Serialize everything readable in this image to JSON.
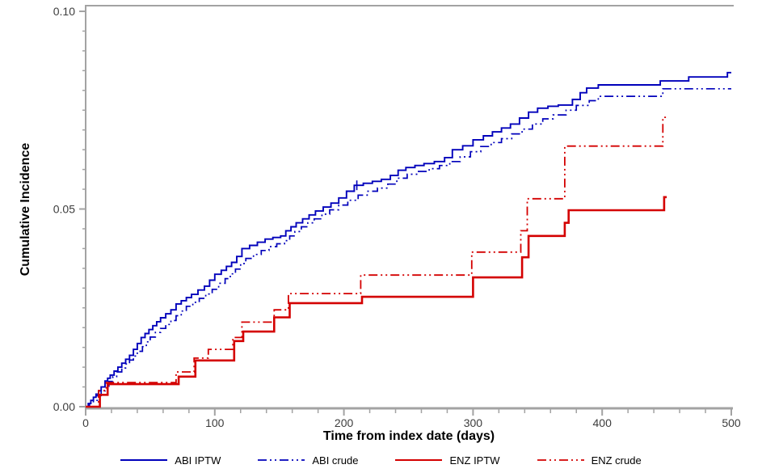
{
  "chart_data": {
    "type": "line",
    "subtype": "step-cumulative-incidence",
    "title": "",
    "xlabel": "Time from index date (days)",
    "ylabel": "Cumulative Incidence",
    "xlim": [
      0,
      500
    ],
    "ylim": [
      0,
      0.1
    ],
    "x_major_ticks": [
      0,
      100,
      200,
      300,
      400,
      500
    ],
    "x_minor_tick_interval": 20,
    "y_major_ticks": [
      0,
      0.05,
      0.1
    ],
    "y_tick_labels": [
      "0.00",
      "0.05",
      "0.10"
    ],
    "y_minor_tick_interval": 0.005,
    "grid": false,
    "legend_position": "bottom",
    "axis_color": "#a3a3a3",
    "tick_label_color": "#3d3d3d",
    "series": [
      {
        "name": "ABI IPTW",
        "color": "#0000bb",
        "style": "solid",
        "width": 1.9,
        "points": [
          [
            0,
            0
          ],
          [
            2,
            0.0008
          ],
          [
            4,
            0.0016
          ],
          [
            6,
            0.0024
          ],
          [
            8,
            0.0032
          ],
          [
            10,
            0.004
          ],
          [
            12,
            0.005
          ],
          [
            15,
            0.0065
          ],
          [
            17,
            0.0072
          ],
          [
            19,
            0.008
          ],
          [
            22,
            0.009
          ],
          [
            25,
            0.01
          ],
          [
            28,
            0.011
          ],
          [
            31,
            0.012
          ],
          [
            34,
            0.013
          ],
          [
            37,
            0.0145
          ],
          [
            40,
            0.016
          ],
          [
            43,
            0.0175
          ],
          [
            46,
            0.0185
          ],
          [
            49,
            0.0195
          ],
          [
            52,
            0.0205
          ],
          [
            55,
            0.0215
          ],
          [
            58,
            0.0225
          ],
          [
            62,
            0.0235
          ],
          [
            66,
            0.0245
          ],
          [
            70,
            0.026
          ],
          [
            74,
            0.0268
          ],
          [
            78,
            0.0276
          ],
          [
            82,
            0.0284
          ],
          [
            87,
            0.0295
          ],
          [
            92,
            0.0305
          ],
          [
            96,
            0.032
          ],
          [
            100,
            0.0335
          ],
          [
            105,
            0.0345
          ],
          [
            109,
            0.0355
          ],
          [
            113,
            0.0365
          ],
          [
            117,
            0.038
          ],
          [
            121,
            0.04
          ],
          [
            127,
            0.0408
          ],
          [
            133,
            0.0416
          ],
          [
            139,
            0.0424
          ],
          [
            145,
            0.0428
          ],
          [
            151,
            0.0432
          ],
          [
            155,
            0.0445
          ],
          [
            159,
            0.0455
          ],
          [
            163,
            0.0465
          ],
          [
            168,
            0.0475
          ],
          [
            173,
            0.0485
          ],
          [
            178,
            0.0495
          ],
          [
            184,
            0.0505
          ],
          [
            190,
            0.0515
          ],
          [
            196,
            0.0528
          ],
          [
            202,
            0.0545
          ],
          [
            208,
            0.056
          ],
          [
            215,
            0.0565
          ],
          [
            222,
            0.057
          ],
          [
            229,
            0.0575
          ],
          [
            236,
            0.0585
          ],
          [
            242,
            0.0598
          ],
          [
            248,
            0.0605
          ],
          [
            255,
            0.061
          ],
          [
            262,
            0.0615
          ],
          [
            270,
            0.062
          ],
          [
            278,
            0.063
          ],
          [
            284,
            0.065
          ],
          [
            292,
            0.066
          ],
          [
            300,
            0.0675
          ],
          [
            308,
            0.0685
          ],
          [
            315,
            0.0695
          ],
          [
            322,
            0.0705
          ],
          [
            329,
            0.0715
          ],
          [
            336,
            0.073
          ],
          [
            343,
            0.0745
          ],
          [
            350,
            0.0755
          ],
          [
            358,
            0.076
          ],
          [
            366,
            0.0763
          ],
          [
            377,
            0.0777
          ],
          [
            383,
            0.0794
          ],
          [
            388,
            0.0806
          ],
          [
            397,
            0.0814
          ],
          [
            445,
            0.0824
          ],
          [
            467,
            0.0834
          ],
          [
            497,
            0.0845
          ],
          [
            500,
            0.0845
          ]
        ]
      },
      {
        "name": "ABI crude",
        "color": "#0000bb",
        "style": "dash-dot-dot",
        "width": 1.7,
        "points": [
          [
            0,
            0
          ],
          [
            3,
            0.0008
          ],
          [
            6,
            0.0016
          ],
          [
            9,
            0.0028
          ],
          [
            12,
            0.004
          ],
          [
            15,
            0.0052
          ],
          [
            18,
            0.0064
          ],
          [
            21,
            0.0076
          ],
          [
            24,
            0.0088
          ],
          [
            28,
            0.0098
          ],
          [
            31,
            0.0108
          ],
          [
            34,
            0.0118
          ],
          [
            37,
            0.0128
          ],
          [
            40,
            0.014
          ],
          [
            44,
            0.0152
          ],
          [
            47,
            0.0164
          ],
          [
            50,
            0.0176
          ],
          [
            54,
            0.0188
          ],
          [
            58,
            0.0198
          ],
          [
            62,
            0.0208
          ],
          [
            66,
            0.0218
          ],
          [
            70,
            0.023
          ],
          [
            74,
            0.0242
          ],
          [
            78,
            0.0254
          ],
          [
            83,
            0.0264
          ],
          [
            88,
            0.0274
          ],
          [
            93,
            0.0285
          ],
          [
            98,
            0.0297
          ],
          [
            103,
            0.0312
          ],
          [
            108,
            0.0324
          ],
          [
            112,
            0.0336
          ],
          [
            116,
            0.0348
          ],
          [
            120,
            0.0362
          ],
          [
            124,
            0.0375
          ],
          [
            130,
            0.0385
          ],
          [
            136,
            0.0395
          ],
          [
            142,
            0.0405
          ],
          [
            148,
            0.0412
          ],
          [
            154,
            0.042
          ],
          [
            158,
            0.0432
          ],
          [
            162,
            0.0443
          ],
          [
            167,
            0.0455
          ],
          [
            172,
            0.0465
          ],
          [
            177,
            0.0475
          ],
          [
            183,
            0.0487
          ],
          [
            189,
            0.0498
          ],
          [
            196,
            0.051
          ],
          [
            203,
            0.0522
          ],
          [
            211,
            0.0535
          ],
          [
            218,
            0.0545
          ],
          [
            226,
            0.0553
          ],
          [
            234,
            0.0563
          ],
          [
            241,
            0.0578
          ],
          [
            249,
            0.0588
          ],
          [
            257,
            0.0595
          ],
          [
            266,
            0.0602
          ],
          [
            274,
            0.061
          ],
          [
            282,
            0.062
          ],
          [
            290,
            0.0632
          ],
          [
            298,
            0.0645
          ],
          [
            306,
            0.0658
          ],
          [
            314,
            0.0668
          ],
          [
            322,
            0.0678
          ],
          [
            330,
            0.069
          ],
          [
            338,
            0.0702
          ],
          [
            346,
            0.0715
          ],
          [
            354,
            0.0728
          ],
          [
            362,
            0.0738
          ],
          [
            372,
            0.075
          ],
          [
            380,
            0.0762
          ],
          [
            390,
            0.0774
          ],
          [
            397,
            0.0785
          ],
          [
            447,
            0.0804
          ],
          [
            500,
            0.0804
          ]
        ]
      },
      {
        "name": "ENZ IPTW",
        "color": "#d40000",
        "style": "solid",
        "width": 2.6,
        "points": [
          [
            0,
            0
          ],
          [
            11,
            0.003
          ],
          [
            17,
            0.0057
          ],
          [
            72,
            0.0076
          ],
          [
            85,
            0.0117
          ],
          [
            115,
            0.0166
          ],
          [
            122,
            0.019
          ],
          [
            146,
            0.0226
          ],
          [
            158,
            0.0262
          ],
          [
            214,
            0.0278
          ],
          [
            300,
            0.0327
          ],
          [
            338,
            0.0378
          ],
          [
            343,
            0.0432
          ],
          [
            371,
            0.0465
          ],
          [
            374,
            0.0497
          ],
          [
            448,
            0.053
          ],
          [
            450,
            0.053
          ]
        ]
      },
      {
        "name": "ENZ crude",
        "color": "#d40000",
        "style": "dash-dot-dot",
        "width": 1.8,
        "points": [
          [
            0,
            0
          ],
          [
            10,
            0.0041
          ],
          [
            16,
            0.0061
          ],
          [
            70,
            0.0088
          ],
          [
            84,
            0.0123
          ],
          [
            95,
            0.0145
          ],
          [
            114,
            0.0175
          ],
          [
            121,
            0.0214
          ],
          [
            146,
            0.0245
          ],
          [
            157,
            0.0286
          ],
          [
            213,
            0.0333
          ],
          [
            299,
            0.0391
          ],
          [
            337,
            0.0445
          ],
          [
            342,
            0.0526
          ],
          [
            371,
            0.0659
          ],
          [
            447,
            0.0732
          ],
          [
            450,
            0.0732
          ]
        ]
      }
    ],
    "censor_marks": [
      {
        "series": "ABI IPTW",
        "day": 210,
        "inc": 0.056
      }
    ]
  }
}
